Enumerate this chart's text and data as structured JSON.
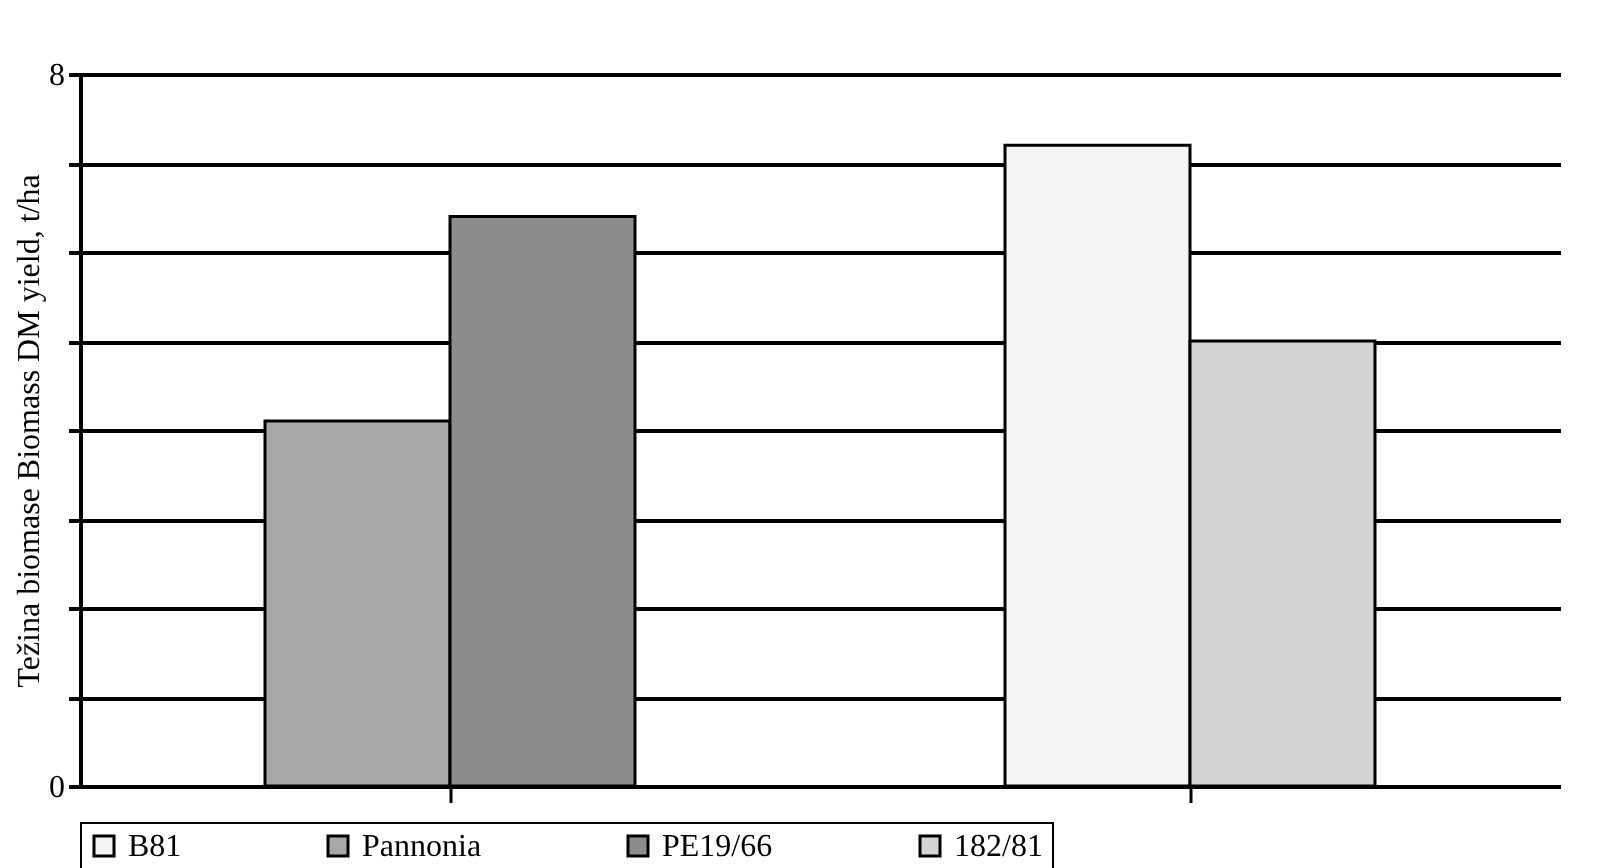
{
  "chart_data": {
    "type": "bar",
    "ylabel": "Težina biomase Biomass DM yield, t/ha",
    "categories": [
      null,
      null
    ],
    "series": [
      {
        "name": "B81",
        "color": "#f4f4f4",
        "values": [
          null,
          7.2
        ]
      },
      {
        "name": "Pannonia",
        "color": "#a8a8a8",
        "values": [
          4.1,
          null
        ]
      },
      {
        "name": "PE19/66",
        "color": "#8c8c8c",
        "values": [
          6.4,
          null
        ]
      },
      {
        "name": "182/81",
        "color": "#d4d4d4",
        "values": [
          null,
          5.0
        ]
      }
    ],
    "ylim": [
      0,
      8
    ],
    "yticks": [
      0,
      {
        "value": 1,
        "label": null
      },
      {
        "value": 2,
        "label": null
      },
      {
        "value": 3,
        "label": null
      },
      {
        "value": 4,
        "label": null
      },
      {
        "value": 5,
        "label": null
      },
      {
        "value": 6,
        "label": null
      },
      {
        "value": 7,
        "label": null
      },
      8
    ],
    "grid": "y",
    "legend": "bottom"
  }
}
